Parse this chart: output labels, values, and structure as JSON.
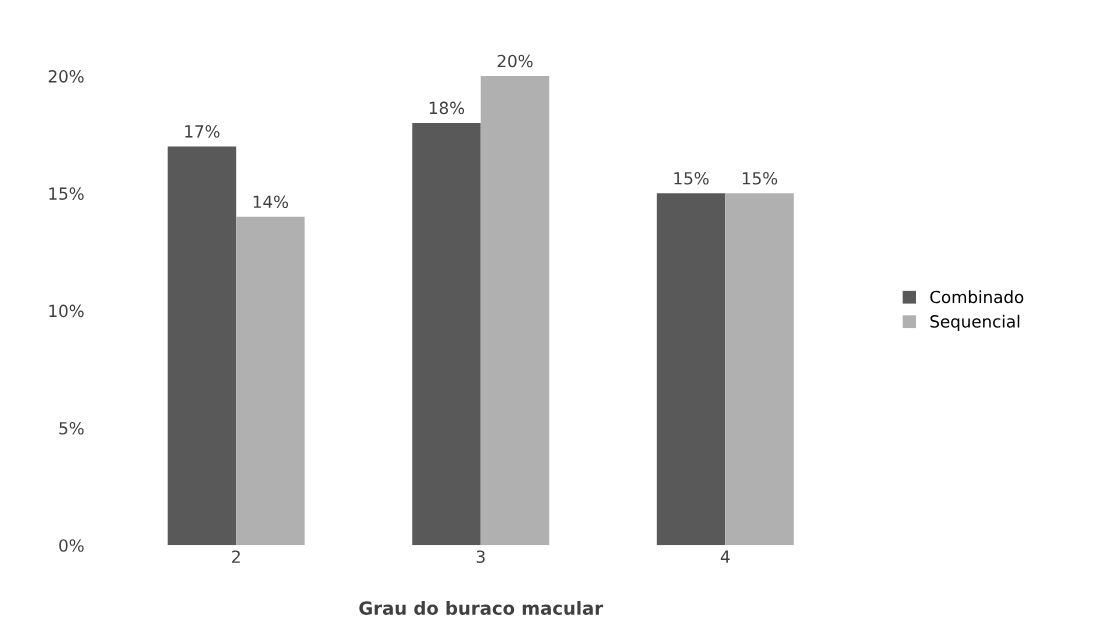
{
  "chart_data": {
    "type": "bar",
    "xlabel": "Grau do buraco macular",
    "categories": [
      "2",
      "3",
      "4"
    ],
    "series": [
      {
        "name": "Combinado",
        "color": "#595959",
        "values": [
          17,
          18,
          15
        ],
        "value_labels": [
          "17%",
          "18%",
          "15%"
        ]
      },
      {
        "name": "Sequencial",
        "color": "#b0b0b0",
        "values": [
          14,
          20,
          15
        ],
        "value_labels": [
          "14%",
          "20%",
          "15%"
        ]
      }
    ],
    "ylim": [
      0,
      20
    ],
    "yticks": [
      {
        "value": 0,
        "label": "0%"
      },
      {
        "value": 5,
        "label": "5%"
      },
      {
        "value": 10,
        "label": "10%"
      },
      {
        "value": 15,
        "label": "15%"
      },
      {
        "value": 20,
        "label": "20%"
      }
    ],
    "grid": false,
    "legend": "right"
  }
}
